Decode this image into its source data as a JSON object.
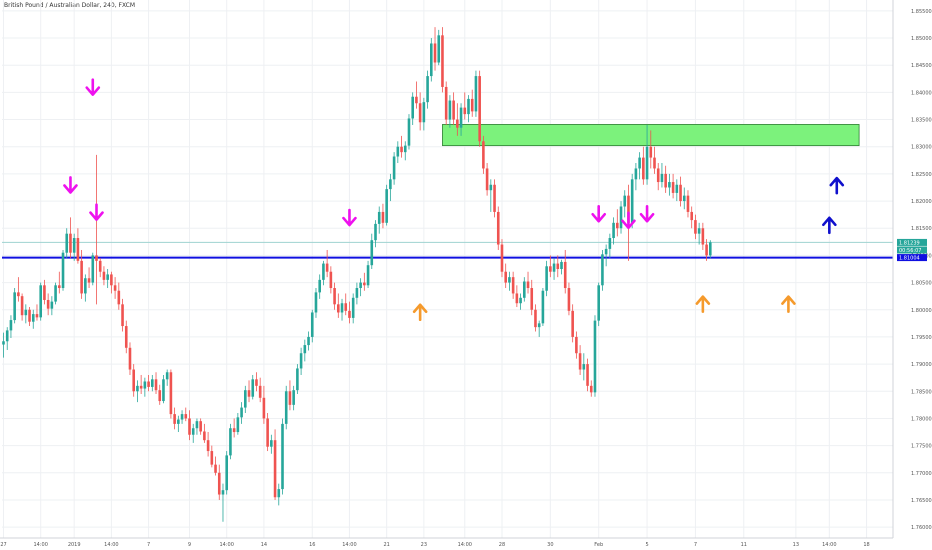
{
  "title": "British Pound / Australian Dollar, 240, FXCM",
  "colors": {
    "up": "#26a69a",
    "down": "#ef5350",
    "zone": "#7cf27c",
    "zone_border": "#2e7d32",
    "line": "#1010e0",
    "arrow_down": "#ee11ee",
    "arrow_up_orange": "#f59a2c",
    "arrow_up_blue": "#1010cc",
    "grid": "#eef0f3",
    "axis_text": "#555555",
    "hline_light": "#9ed3d0"
  },
  "chart_data": {
    "type": "candlestick",
    "x_labels": [
      "27",
      "14:00",
      "2019",
      "14:00",
      "7",
      "9",
      "14:00",
      "14",
      "16",
      "14:00",
      "21",
      "23",
      "14:00",
      "28",
      "30",
      "Feb",
      "5",
      "7",
      "11",
      "13",
      "14:00",
      "18"
    ],
    "x_label_index": [
      0,
      10,
      19,
      29,
      39,
      50,
      60,
      70,
      83,
      93,
      103,
      113,
      124,
      134,
      147,
      160,
      173,
      186,
      199,
      213,
      222,
      232
    ],
    "y_labels": [
      "1.85500",
      "1.85000",
      "1.84500",
      "1.84000",
      "1.83500",
      "1.83000",
      "1.82500",
      "1.82000",
      "1.81500",
      "1.81000",
      "1.80500",
      "1.80000",
      "1.79500",
      "1.79000",
      "1.78500",
      "1.78000",
      "1.77500",
      "1.77000",
      "1.76500",
      "1.76000"
    ],
    "ylim": [
      1.758,
      1.857
    ],
    "price_tags": [
      {
        "label": "1.81239",
        "value": 1.81239,
        "color": "#26a69a"
      },
      {
        "label": "00:56:07",
        "value": 1.811,
        "color": "#26a69a"
      },
      {
        "label": "1.81004",
        "value": 1.8096,
        "color": "#1010e0"
      }
    ],
    "horizontal_lines": [
      {
        "value": 1.8096,
        "color": "#1010e0",
        "width": 2
      },
      {
        "value": 1.81239,
        "color": "#9ed3d0",
        "width": 1
      }
    ],
    "zone": {
      "x_start_index": 118,
      "x_end_index": 230,
      "y_low": 1.8302,
      "y_high": 1.8341
    },
    "candles": [
      [
        1.7936,
        1.7958,
        1.7912,
        1.7942
      ],
      [
        1.7942,
        1.7968,
        1.7926,
        1.7962
      ],
      [
        1.7962,
        1.799,
        1.7948,
        1.7981
      ],
      [
        1.7981,
        1.804,
        1.7975,
        1.8032
      ],
      [
        1.8032,
        1.806,
        1.8015,
        1.8025
      ],
      [
        1.8025,
        1.803,
        1.798,
        1.799
      ],
      [
        1.799,
        1.801,
        1.7975,
        1.8
      ],
      [
        1.8,
        1.8005,
        1.797,
        1.7978
      ],
      [
        1.7978,
        1.8,
        1.7965,
        1.7992
      ],
      [
        1.7992,
        1.801,
        1.798,
        1.7986
      ],
      [
        1.7986,
        1.805,
        1.798,
        1.8045
      ],
      [
        1.8045,
        1.8055,
        1.801,
        1.8018
      ],
      [
        1.8018,
        1.803,
        1.799,
        1.8002
      ],
      [
        1.8002,
        1.8025,
        1.799,
        1.8015
      ],
      [
        1.8015,
        1.805,
        1.801,
        1.8045
      ],
      [
        1.8045,
        1.807,
        1.803,
        1.804
      ],
      [
        1.804,
        1.811,
        1.8035,
        1.8105
      ],
      [
        1.8105,
        1.815,
        1.8095,
        1.814
      ],
      [
        1.814,
        1.817,
        1.8095,
        1.8105
      ],
      [
        1.8105,
        1.814,
        1.809,
        1.8132
      ],
      [
        1.8132,
        1.815,
        1.8085,
        1.809
      ],
      [
        1.809,
        1.811,
        1.802,
        1.803
      ],
      [
        1.803,
        1.8065,
        1.8015,
        1.8058
      ],
      [
        1.8058,
        1.8078,
        1.804,
        1.805
      ],
      [
        1.805,
        1.8105,
        1.8045,
        1.81
      ],
      [
        1.81,
        1.8285,
        1.801,
        1.809
      ],
      [
        1.809,
        1.8095,
        1.806,
        1.807
      ],
      [
        1.807,
        1.808,
        1.8045,
        1.8055
      ],
      [
        1.8055,
        1.8075,
        1.804,
        1.8065
      ],
      [
        1.8065,
        1.807,
        1.803,
        1.8045
      ],
      [
        1.8045,
        1.806,
        1.802,
        1.8035
      ],
      [
        1.8035,
        1.805,
        1.8,
        1.801
      ],
      [
        1.801,
        1.802,
        1.796,
        1.797
      ],
      [
        1.797,
        1.798,
        1.792,
        1.793
      ],
      [
        1.793,
        1.794,
        1.788,
        1.789
      ],
      [
        1.789,
        1.79,
        1.784,
        1.785
      ],
      [
        1.785,
        1.787,
        1.783,
        1.786
      ],
      [
        1.786,
        1.788,
        1.7845,
        1.7855
      ],
      [
        1.7855,
        1.7875,
        1.784,
        1.7868
      ],
      [
        1.7868,
        1.788,
        1.785,
        1.7858
      ],
      [
        1.7858,
        1.788,
        1.785,
        1.7872
      ],
      [
        1.7872,
        1.7885,
        1.7845,
        1.7852
      ],
      [
        1.7852,
        1.7862,
        1.7825,
        1.7832
      ],
      [
        1.7832,
        1.788,
        1.7828,
        1.7872
      ],
      [
        1.7872,
        1.789,
        1.786,
        1.7885
      ],
      [
        1.7885,
        1.789,
        1.78,
        1.7808
      ],
      [
        1.7808,
        1.782,
        1.778,
        1.779
      ],
      [
        1.779,
        1.7805,
        1.7775,
        1.7798
      ],
      [
        1.7798,
        1.7815,
        1.779,
        1.7808
      ],
      [
        1.7808,
        1.782,
        1.7795,
        1.78
      ],
      [
        1.78,
        1.7815,
        1.776,
        1.777
      ],
      [
        1.777,
        1.779,
        1.7755,
        1.7782
      ],
      [
        1.7782,
        1.78,
        1.777,
        1.7795
      ],
      [
        1.7795,
        1.78,
        1.777,
        1.7776
      ],
      [
        1.7776,
        1.779,
        1.7755,
        1.776
      ],
      [
        1.776,
        1.7775,
        1.773,
        1.774
      ],
      [
        1.774,
        1.775,
        1.771,
        1.7715
      ],
      [
        1.7715,
        1.773,
        1.7695,
        1.77
      ],
      [
        1.77,
        1.7715,
        1.765,
        1.766
      ],
      [
        1.766,
        1.768,
        1.761,
        1.7668
      ],
      [
        1.7668,
        1.774,
        1.766,
        1.7732
      ],
      [
        1.7732,
        1.779,
        1.7725,
        1.7782
      ],
      [
        1.7782,
        1.78,
        1.7765,
        1.7775
      ],
      [
        1.7775,
        1.781,
        1.777,
        1.7802
      ],
      [
        1.7802,
        1.783,
        1.779,
        1.782
      ],
      [
        1.782,
        1.786,
        1.781,
        1.7852
      ],
      [
        1.7852,
        1.787,
        1.783,
        1.784
      ],
      [
        1.784,
        1.788,
        1.7835,
        1.7872
      ],
      [
        1.7872,
        1.7885,
        1.785,
        1.786
      ],
      [
        1.786,
        1.7875,
        1.783,
        1.7838
      ],
      [
        1.7838,
        1.786,
        1.779,
        1.78
      ],
      [
        1.78,
        1.781,
        1.774,
        1.7748
      ],
      [
        1.7748,
        1.777,
        1.7735,
        1.776
      ],
      [
        1.776,
        1.778,
        1.765,
        1.7655
      ],
      [
        1.7655,
        1.768,
        1.764,
        1.767
      ],
      [
        1.767,
        1.78,
        1.766,
        1.779
      ],
      [
        1.779,
        1.786,
        1.778,
        1.785
      ],
      [
        1.785,
        1.787,
        1.7815,
        1.7825
      ],
      [
        1.7825,
        1.786,
        1.7815,
        1.7852
      ],
      [
        1.7852,
        1.79,
        1.7845,
        1.7892
      ],
      [
        1.7892,
        1.793,
        1.788,
        1.792
      ],
      [
        1.792,
        1.7945,
        1.7905,
        1.7935
      ],
      [
        1.7935,
        1.796,
        1.7925,
        1.795
      ],
      [
        1.795,
        1.8,
        1.794,
        1.7995
      ],
      [
        1.7995,
        1.804,
        1.7985,
        1.8032
      ],
      [
        1.8032,
        1.8065,
        1.802,
        1.8055
      ],
      [
        1.8055,
        1.809,
        1.8045,
        1.8085
      ],
      [
        1.8085,
        1.811,
        1.806,
        1.807
      ],
      [
        1.807,
        1.808,
        1.803,
        1.804
      ],
      [
        1.804,
        1.805,
        1.8,
        1.801
      ],
      [
        1.801,
        1.803,
        1.7985,
        1.7995
      ],
      [
        1.7995,
        1.802,
        1.798,
        1.8012
      ],
      [
        1.8012,
        1.803,
        1.799,
        1.7998
      ],
      [
        1.7998,
        1.8015,
        1.7975,
        1.7985
      ],
      [
        1.7985,
        1.803,
        1.7975,
        1.8022
      ],
      [
        1.8022,
        1.805,
        1.801,
        1.804
      ],
      [
        1.804,
        1.8058,
        1.8025,
        1.805
      ],
      [
        1.805,
        1.8068,
        1.8035,
        1.8045
      ],
      [
        1.8045,
        1.809,
        1.804,
        1.8082
      ],
      [
        1.8082,
        1.814,
        1.8075,
        1.8128
      ],
      [
        1.8128,
        1.8165,
        1.8115,
        1.8158
      ],
      [
        1.8158,
        1.819,
        1.814,
        1.818
      ],
      [
        1.818,
        1.8195,
        1.815,
        1.816
      ],
      [
        1.816,
        1.823,
        1.8155,
        1.8222
      ],
      [
        1.8222,
        1.825,
        1.82,
        1.824
      ],
      [
        1.824,
        1.829,
        1.823,
        1.8282
      ],
      [
        1.8282,
        1.831,
        1.827,
        1.83
      ],
      [
        1.83,
        1.832,
        1.828,
        1.829
      ],
      [
        1.829,
        1.831,
        1.8275,
        1.8302
      ],
      [
        1.8302,
        1.836,
        1.8295,
        1.8352
      ],
      [
        1.8352,
        1.84,
        1.834,
        1.8392
      ],
      [
        1.8392,
        1.842,
        1.837,
        1.838
      ],
      [
        1.838,
        1.84,
        1.833,
        1.8345
      ],
      [
        1.8345,
        1.839,
        1.833,
        1.8382
      ],
      [
        1.8382,
        1.844,
        1.837,
        1.843
      ],
      [
        1.843,
        1.85,
        1.842,
        1.849
      ],
      [
        1.849,
        1.852,
        1.844,
        1.8455
      ],
      [
        1.8455,
        1.8515,
        1.845,
        1.8505
      ],
      [
        1.8505,
        1.852,
        1.84,
        1.841
      ],
      [
        1.841,
        1.842,
        1.834,
        1.835
      ],
      [
        1.835,
        1.8395,
        1.8335,
        1.8385
      ],
      [
        1.8385,
        1.84,
        1.834,
        1.835
      ],
      [
        1.835,
        1.838,
        1.832,
        1.8335
      ],
      [
        1.8335,
        1.838,
        1.832,
        1.8372
      ],
      [
        1.8372,
        1.84,
        1.835,
        1.836
      ],
      [
        1.836,
        1.8395,
        1.8345,
        1.8388
      ],
      [
        1.8388,
        1.8405,
        1.8355,
        1.8365
      ],
      [
        1.8365,
        1.844,
        1.8355,
        1.843
      ],
      [
        1.843,
        1.844,
        1.83,
        1.831
      ],
      [
        1.831,
        1.832,
        1.825,
        1.826
      ],
      [
        1.826,
        1.827,
        1.821,
        1.822
      ],
      [
        1.822,
        1.824,
        1.818,
        1.823
      ],
      [
        1.823,
        1.824,
        1.817,
        1.818
      ],
      [
        1.818,
        1.819,
        1.811,
        1.812
      ],
      [
        1.812,
        1.813,
        1.806,
        1.807
      ],
      [
        1.807,
        1.8085,
        1.804,
        1.805
      ],
      [
        1.805,
        1.807,
        1.8035,
        1.806
      ],
      [
        1.806,
        1.807,
        1.802,
        1.803
      ],
      [
        1.803,
        1.8045,
        1.8005,
        1.8012
      ],
      [
        1.8012,
        1.803,
        1.8,
        1.8022
      ],
      [
        1.8022,
        1.806,
        1.8015,
        1.8052
      ],
      [
        1.8052,
        1.807,
        1.803,
        1.804
      ],
      [
        1.804,
        1.8055,
        1.799,
        1.8
      ],
      [
        1.8,
        1.801,
        1.796,
        1.7968
      ],
      [
        1.7968,
        1.798,
        1.795,
        1.7975
      ],
      [
        1.7975,
        1.804,
        1.797,
        1.8035
      ],
      [
        1.8035,
        1.809,
        1.8025,
        1.808
      ],
      [
        1.808,
        1.81,
        1.806,
        1.807
      ],
      [
        1.807,
        1.8095,
        1.8055,
        1.8085
      ],
      [
        1.8085,
        1.81,
        1.806,
        1.8075
      ],
      [
        1.8075,
        1.8092,
        1.8065,
        1.8088
      ],
      [
        1.8088,
        1.811,
        1.803,
        1.804
      ],
      [
        1.804,
        1.805,
        1.799,
        1.7998
      ],
      [
        1.7998,
        1.801,
        1.794,
        1.795
      ],
      [
        1.795,
        1.796,
        1.791,
        1.792
      ],
      [
        1.792,
        1.7935,
        1.788,
        1.789
      ],
      [
        1.789,
        1.792,
        1.787,
        1.79
      ],
      [
        1.79,
        1.791,
        1.785,
        1.786
      ],
      [
        1.786,
        1.787,
        1.784,
        1.7848
      ],
      [
        1.7848,
        1.799,
        1.784,
        1.798
      ],
      [
        1.798,
        1.805,
        1.797,
        1.8045
      ],
      [
        1.8045,
        1.811,
        1.8035,
        1.8102
      ],
      [
        1.8102,
        1.812,
        1.808,
        1.8112
      ],
      [
        1.8112,
        1.814,
        1.8095,
        1.8132
      ],
      [
        1.8132,
        1.817,
        1.812,
        1.816
      ],
      [
        1.816,
        1.8185,
        1.8135,
        1.815
      ],
      [
        1.815,
        1.82,
        1.814,
        1.819
      ],
      [
        1.819,
        1.822,
        1.817,
        1.821
      ],
      [
        1.821,
        1.823,
        1.809,
        1.816
      ],
      [
        1.816,
        1.825,
        1.815,
        1.824
      ],
      [
        1.824,
        1.827,
        1.822,
        1.826
      ],
      [
        1.826,
        1.829,
        1.824,
        1.828
      ],
      [
        1.828,
        1.83,
        1.823,
        1.824
      ],
      [
        1.824,
        1.834,
        1.823,
        1.83
      ],
      [
        1.83,
        1.833,
        1.826,
        1.828
      ],
      [
        1.828,
        1.83,
        1.825,
        1.826
      ],
      [
        1.826,
        1.827,
        1.822,
        1.8235
      ],
      [
        1.8235,
        1.827,
        1.8225,
        1.825
      ],
      [
        1.825,
        1.8265,
        1.8215,
        1.8225
      ],
      [
        1.8225,
        1.825,
        1.821,
        1.8235
      ],
      [
        1.8235,
        1.825,
        1.8205,
        1.8215
      ],
      [
        1.8215,
        1.824,
        1.82,
        1.823
      ],
      [
        1.823,
        1.8245,
        1.819,
        1.82
      ],
      [
        1.82,
        1.8225,
        1.8185,
        1.821
      ],
      [
        1.821,
        1.822,
        1.817,
        1.818
      ],
      [
        1.818,
        1.819,
        1.815,
        1.8165
      ],
      [
        1.8165,
        1.8175,
        1.813,
        1.814
      ],
      [
        1.814,
        1.816,
        1.812,
        1.815
      ],
      [
        1.815,
        1.816,
        1.811,
        1.812
      ],
      [
        1.812,
        1.813,
        1.809,
        1.81
      ],
      [
        1.81,
        1.8128,
        1.8095,
        1.8124
      ]
    ],
    "annotations": [
      {
        "type": "arrow_down",
        "color_key": "arrow_down",
        "index": 18,
        "value": 1.8225
      },
      {
        "type": "arrow_down",
        "color_key": "arrow_down",
        "index": 24,
        "value": 1.8405
      },
      {
        "type": "arrow_down",
        "color_key": "arrow_down",
        "index": 25,
        "value": 1.8175
      },
      {
        "type": "arrow_down",
        "color_key": "arrow_down",
        "index": 93,
        "value": 1.8165
      },
      {
        "type": "arrow_down",
        "color_key": "arrow_down",
        "index": 160,
        "value": 1.8172
      },
      {
        "type": "arrow_down",
        "color_key": "arrow_down",
        "index": 168,
        "value": 1.816
      },
      {
        "type": "arrow_down",
        "color_key": "arrow_down",
        "index": 173,
        "value": 1.8172
      },
      {
        "type": "arrow_up",
        "color_key": "arrow_up_orange",
        "index": 112,
        "value": 1.8
      },
      {
        "type": "arrow_up",
        "color_key": "arrow_up_orange",
        "index": 188,
        "value": 1.8015
      },
      {
        "type": "arrow_up",
        "color_key": "arrow_up_orange",
        "index": 211,
        "value": 1.8015
      },
      {
        "type": "arrow_up",
        "color_key": "arrow_up_blue",
        "index": 222,
        "value": 1.816
      },
      {
        "type": "arrow_up",
        "color_key": "arrow_up_blue",
        "index": 224,
        "value": 1.8233
      }
    ]
  }
}
